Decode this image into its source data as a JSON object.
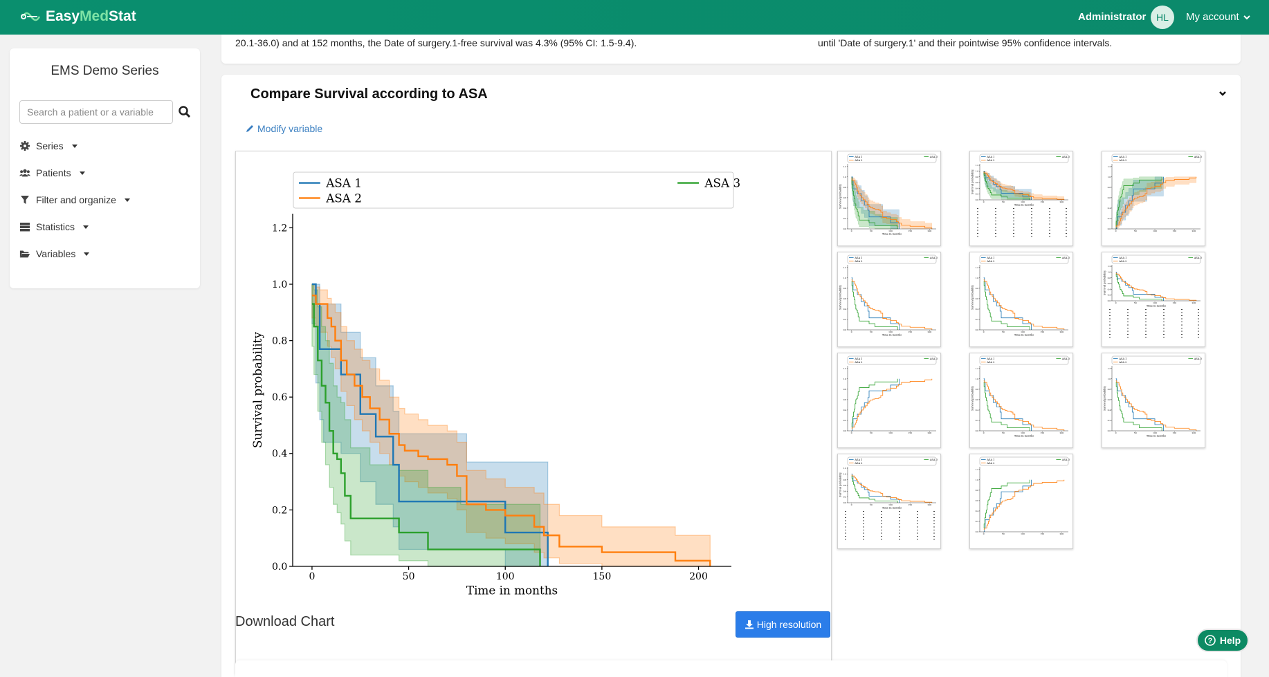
{
  "app": {
    "brand_part1": "Easy",
    "brand_part2": "Med",
    "brand_part3": "Stat",
    "user_role": "Administrator",
    "avatar_initials": "HL",
    "account_label": "My account"
  },
  "sidebar": {
    "title": "EMS Demo Series",
    "search_placeholder": "Search a patient or a variable",
    "items": [
      {
        "label": "Series",
        "icon": "gear-icon"
      },
      {
        "label": "Patients",
        "icon": "users-icon"
      },
      {
        "label": "Filter and organize",
        "icon": "filter-icon"
      },
      {
        "label": "Statistics",
        "icon": "server-icon"
      },
      {
        "label": "Variables",
        "icon": "folder-open-icon"
      }
    ]
  },
  "top_panel": {
    "left_text": "20.1-36.0) and at 152 months, the Date of surgery.1-free survival was 4.3% (95% CI: 1.5-9.4).",
    "right_text": "until 'Date of surgery.1' and their pointwise 95% confidence intervals."
  },
  "panel": {
    "title": "Compare Survival according to ASA",
    "modify_label": "Modify variable",
    "download_label": "Download Chart",
    "hires_label": "High resolution"
  },
  "help_label": "Help",
  "colors": {
    "brand": "#0b8a6b",
    "asa1": "#1f77b4",
    "asa2": "#ff7f0e",
    "asa3": "#2ca02c",
    "button": "#2b7de9"
  },
  "chart_data": {
    "type": "line",
    "xlabel": "Time in months",
    "ylabel": "Survival probability",
    "xlim": [
      -10,
      217
    ],
    "ylim": [
      0,
      1.25
    ],
    "xticks": [
      0,
      50,
      100,
      150,
      200
    ],
    "yticks": [
      0.0,
      0.2,
      0.4,
      0.6,
      0.8,
      1.0,
      1.2
    ],
    "legend_position": "top",
    "step": true,
    "series": [
      {
        "name": "ASA 1",
        "color": "#1f77b4",
        "x": [
          0,
          2,
          4,
          6,
          12,
          15,
          25,
          33,
          42,
          45,
          60,
          75,
          80,
          100,
          120,
          122
        ],
        "y": [
          1.0,
          0.93,
          0.77,
          0.77,
          0.77,
          0.68,
          0.54,
          0.46,
          0.36,
          0.23,
          0.23,
          0.23,
          0.23,
          0.12,
          0.12,
          0.0
        ],
        "lower": [
          0.86,
          0.65,
          0.52,
          0.44,
          0.44,
          0.4,
          0.3,
          0.22,
          0.14,
          0.06,
          0.06,
          0.06,
          0.06,
          0.0,
          0.0,
          0.0
        ],
        "upper": [
          1.0,
          1.0,
          0.93,
          0.93,
          0.93,
          0.83,
          0.74,
          0.64,
          0.55,
          0.47,
          0.47,
          0.47,
          0.37,
          0.37,
          0.37,
          0.37
        ]
      },
      {
        "name": "ASA 2",
        "color": "#ff7f0e",
        "x": [
          0,
          2,
          4,
          8,
          10,
          12,
          15,
          18,
          22,
          26,
          30,
          35,
          40,
          45,
          48,
          55,
          60,
          70,
          75,
          80,
          90,
          100,
          115,
          120,
          128,
          150,
          188,
          206
        ],
        "y": [
          0.96,
          0.93,
          0.93,
          0.88,
          0.85,
          0.8,
          0.73,
          0.68,
          0.64,
          0.6,
          0.56,
          0.52,
          0.47,
          0.43,
          0.41,
          0.39,
          0.38,
          0.36,
          0.32,
          0.22,
          0.2,
          0.18,
          0.14,
          0.11,
          0.07,
          0.05,
          0.02,
          0.0
        ],
        "lower": [
          0.88,
          0.85,
          0.83,
          0.78,
          0.74,
          0.7,
          0.62,
          0.57,
          0.52,
          0.48,
          0.44,
          0.4,
          0.36,
          0.32,
          0.3,
          0.28,
          0.26,
          0.24,
          0.2,
          0.12,
          0.1,
          0.08,
          0.05,
          0.03,
          0.01,
          0.0,
          0.0,
          0.0
        ],
        "upper": [
          1.0,
          0.99,
          0.98,
          0.95,
          0.93,
          0.9,
          0.85,
          0.8,
          0.77,
          0.73,
          0.7,
          0.66,
          0.6,
          0.56,
          0.54,
          0.52,
          0.5,
          0.48,
          0.44,
          0.34,
          0.31,
          0.28,
          0.26,
          0.22,
          0.18,
          0.14,
          0.11,
          0.11
        ]
      },
      {
        "name": "ASA 3",
        "color": "#2ca02c",
        "x": [
          0,
          1,
          3,
          5,
          7,
          9,
          11,
          13,
          15,
          17,
          20,
          30,
          45,
          60,
          77,
          100,
          118
        ],
        "y": [
          0.93,
          0.85,
          0.73,
          0.64,
          0.58,
          0.48,
          0.4,
          0.38,
          0.33,
          0.25,
          0.17,
          0.17,
          0.12,
          0.06,
          0.06,
          0.06,
          0.0
        ],
        "lower": [
          0.78,
          0.68,
          0.55,
          0.44,
          0.36,
          0.28,
          0.22,
          0.19,
          0.15,
          0.09,
          0.04,
          0.04,
          0.02,
          0.0,
          0.0,
          0.0,
          0.0
        ],
        "upper": [
          1.0,
          0.98,
          0.92,
          0.85,
          0.8,
          0.72,
          0.64,
          0.6,
          0.58,
          0.52,
          0.42,
          0.36,
          0.34,
          0.28,
          0.22,
          0.22,
          0.22
        ]
      }
    ]
  },
  "thumbnails": [
    {
      "kind": "km-ci"
    },
    {
      "kind": "km-ci-risk"
    },
    {
      "kind": "cumhaz-ci"
    },
    {
      "kind": "km"
    },
    {
      "kind": "km"
    },
    {
      "kind": "km-risk"
    },
    {
      "kind": "cumhaz"
    },
    {
      "kind": "km"
    },
    {
      "kind": "km"
    },
    {
      "kind": "km-risk"
    },
    {
      "kind": "cumhaz"
    }
  ]
}
